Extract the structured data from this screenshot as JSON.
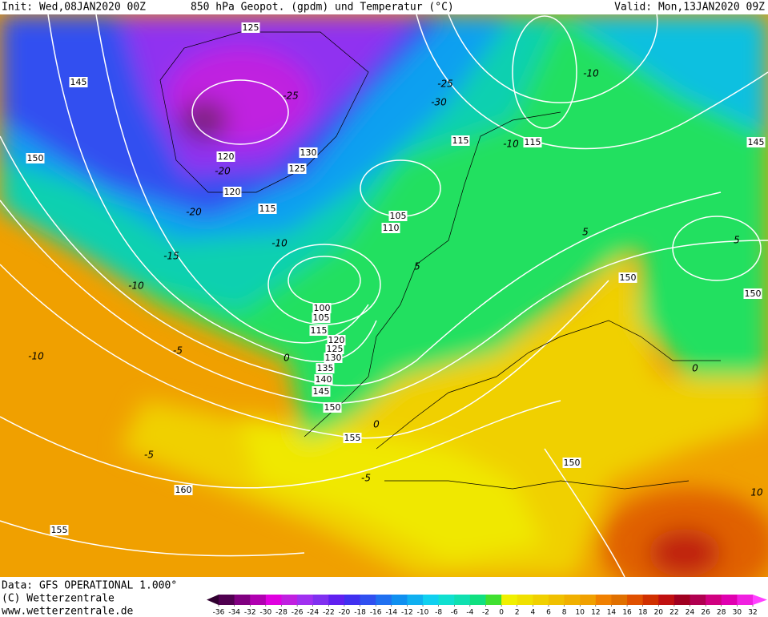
{
  "header": {
    "init": "Init: Wed,08JAN2020 00Z",
    "title": "850 hPa Geopot. (gpdm) und Temperatur (°C)",
    "valid": "Valid: Mon,13JAN2020 09Z"
  },
  "footer": {
    "data": "Data: GFS OPERATIONAL 1.000°",
    "copyright": "(C) Wetterzentrale",
    "url": "www.wetterzentrale.de"
  },
  "contour_labels": {
    "geopotential": [
      "125",
      "145",
      "150",
      "120",
      "130",
      "125",
      "120",
      "115",
      "115",
      "115",
      "145",
      "105",
      "110",
      "100",
      "105",
      "115",
      "120",
      "125",
      "130",
      "135",
      "140",
      "145",
      "150",
      "155",
      "160",
      "155",
      "150",
      "150",
      "150"
    ],
    "temperature": [
      "-20",
      "-20",
      "-15",
      "-10",
      "-10",
      "-5",
      "0",
      "-10",
      "-5",
      "-5",
      "5",
      "0",
      "-25",
      "-30",
      "-25",
      "-10",
      "-10",
      "5",
      "0",
      "10",
      "5"
    ]
  },
  "colorbar": {
    "ticks": [
      -36,
      -34,
      -32,
      -30,
      -28,
      -26,
      -24,
      -22,
      -20,
      -18,
      -16,
      -14,
      -12,
      -10,
      -8,
      -6,
      -4,
      -2,
      0,
      2,
      4,
      6,
      8,
      10,
      12,
      14,
      16,
      18,
      20,
      22,
      24,
      26,
      28,
      30,
      32
    ],
    "under_color": "#300030",
    "over_color": "#ff40ff",
    "colors": [
      "#500050",
      "#800080",
      "#b000b0",
      "#e000e0",
      "#c020e0",
      "#a030f0",
      "#8030f0",
      "#6020f0",
      "#4030f0",
      "#3050f0",
      "#2070f0",
      "#1090f0",
      "#10b0f0",
      "#10d0f0",
      "#10e0d0",
      "#10e0b0",
      "#10e080",
      "#40e030",
      "#f0f000",
      "#f0e000",
      "#f0d000",
      "#f0c000",
      "#f0b000",
      "#f0a000",
      "#f08000",
      "#e07000",
      "#e05000",
      "#d03000",
      "#c01010",
      "#a00020",
      "#b00050",
      "#d00080",
      "#e000b0",
      "#f020e0"
    ]
  }
}
